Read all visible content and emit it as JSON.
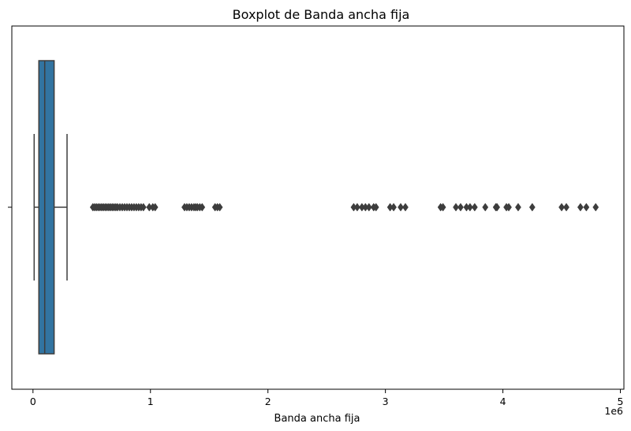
{
  "chart_data": {
    "type": "boxplot",
    "orientation": "horizontal",
    "title": "Boxplot de Banda ancha fija",
    "xlabel": "Banda ancha fija",
    "ylabel": "",
    "x_ticks": [
      0,
      1,
      2,
      3,
      4,
      5
    ],
    "x_tick_labels": [
      "0",
      "1",
      "2",
      "3",
      "4",
      "5"
    ],
    "x_offset_label": "1e6",
    "xlim": [
      -180000,
      5030000
    ],
    "grid": false,
    "colors": {
      "box_fill": "#3274a1",
      "lines": "#3d3d3d",
      "outliers": "#3d3d3d"
    },
    "box": {
      "whisker_low": 10000,
      "q1": 50000,
      "median": 100000,
      "q3": 180000,
      "whisker_high": 290000
    },
    "outliers": [
      510000,
      525000,
      540000,
      555000,
      570000,
      585000,
      600000,
      615000,
      630000,
      645000,
      660000,
      675000,
      690000,
      705000,
      720000,
      740000,
      760000,
      780000,
      800000,
      820000,
      840000,
      860000,
      880000,
      900000,
      920000,
      940000,
      990000,
      1020000,
      1040000,
      1290000,
      1310000,
      1330000,
      1350000,
      1370000,
      1385000,
      1400000,
      1420000,
      1440000,
      1550000,
      1570000,
      1590000,
      2730000,
      2760000,
      2800000,
      2830000,
      2860000,
      2900000,
      2920000,
      3040000,
      3070000,
      3130000,
      3170000,
      3470000,
      3490000,
      3600000,
      3640000,
      3690000,
      3720000,
      3760000,
      3850000,
      3940000,
      3950000,
      4030000,
      4050000,
      4130000,
      4250000,
      4500000,
      4540000,
      4660000,
      4710000,
      4790000
    ]
  }
}
